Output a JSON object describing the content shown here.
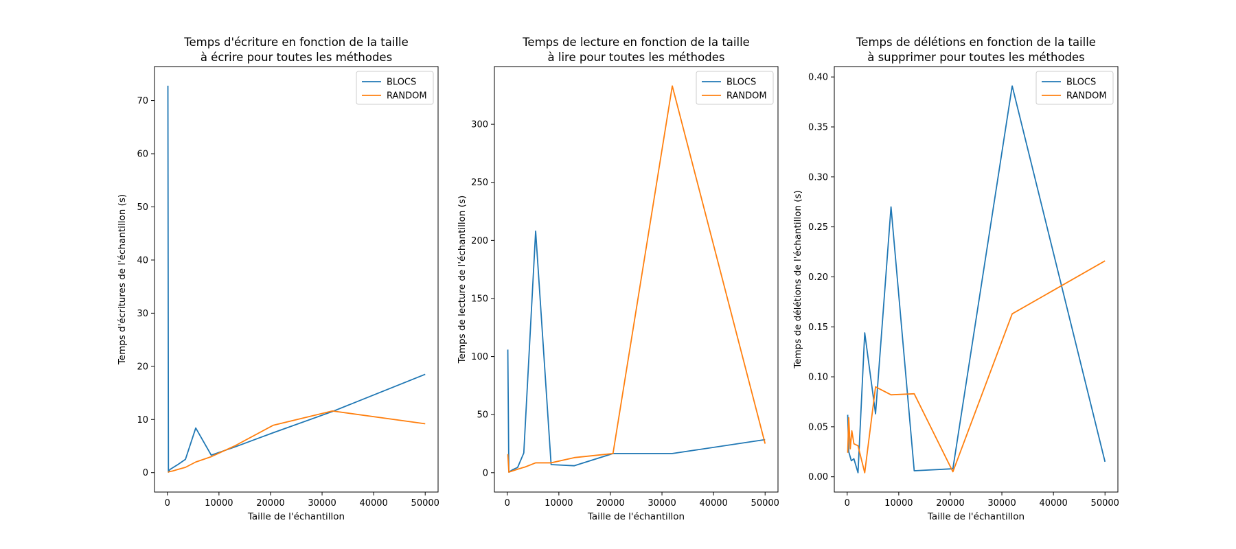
{
  "colors": {
    "BLOCS": "#1f77b4",
    "RANDOM": "#ff7f0e",
    "background": "#ffffff",
    "axes": "#000000"
  },
  "chart_data": [
    {
      "type": "line",
      "title": [
        "Temps d'écriture en fonction de la taille",
        "à écrire pour toutes les méthodes"
      ],
      "xlabel": "Taille de l'échantillon",
      "ylabel": "Temps d'écritures de l'échantillon (s)",
      "xlim": [
        -2500,
        52500
      ],
      "ylim": [
        -3.65,
        76.4
      ],
      "xticks": [
        0,
        10000,
        20000,
        30000,
        40000,
        50000
      ],
      "yticks": [
        0,
        10,
        20,
        30,
        40,
        50,
        60,
        70
      ],
      "legend": "top-right",
      "grid": false,
      "series": [
        {
          "name": "BLOCS",
          "points": [
            [
              100,
              72.8
            ],
            [
              200,
              0.1
            ],
            [
              500,
              0.6
            ],
            [
              1000,
              0.9
            ],
            [
              2000,
              1.5
            ],
            [
              3500,
              2.5
            ],
            [
              5500,
              8.4
            ],
            [
              8500,
              3.3
            ],
            [
              13000,
              4.8
            ],
            [
              20500,
              7.5
            ],
            [
              32000,
              11.5
            ],
            [
              50000,
              18.5
            ]
          ]
        },
        {
          "name": "RANDOM",
          "points": [
            [
              100,
              0.1
            ],
            [
              500,
              0.2
            ],
            [
              1000,
              0.3
            ],
            [
              2000,
              0.6
            ],
            [
              3500,
              1.0
            ],
            [
              5500,
              2.0
            ],
            [
              8500,
              3.0
            ],
            [
              13000,
              5.0
            ],
            [
              20500,
              8.9
            ],
            [
              32000,
              11.6
            ],
            [
              50000,
              9.2
            ]
          ]
        }
      ]
    },
    {
      "type": "line",
      "title": [
        "Temps de lecture en fonction de la taille",
        "à lire pour toutes les méthodes"
      ],
      "xlabel": "Taille de l'échantillon",
      "ylabel": "Temps de lecture de l'échantillon (s)",
      "xlim": [
        -2500,
        52500
      ],
      "ylim": [
        -16.65,
        349.7
      ],
      "xticks": [
        0,
        10000,
        20000,
        30000,
        40000,
        50000
      ],
      "yticks": [
        0,
        50,
        100,
        150,
        200,
        250,
        300
      ],
      "legend": "top-right",
      "grid": false,
      "series": [
        {
          "name": "BLOCS",
          "points": [
            [
              100,
              106
            ],
            [
              300,
              0.5
            ],
            [
              1000,
              2.5
            ],
            [
              2000,
              4.5
            ],
            [
              3200,
              17
            ],
            [
              5500,
              208
            ],
            [
              8500,
              7
            ],
            [
              13000,
              6
            ],
            [
              20500,
              16.5
            ],
            [
              32000,
              16.5
            ],
            [
              50000,
              28.5
            ]
          ]
        },
        {
          "name": "RANDOM",
          "points": [
            [
              100,
              16
            ],
            [
              300,
              0.5
            ],
            [
              1000,
              1.5
            ],
            [
              2000,
              3
            ],
            [
              3500,
              5
            ],
            [
              5500,
              8.5
            ],
            [
              8500,
              8.5
            ],
            [
              13000,
              13
            ],
            [
              20500,
              16.5
            ],
            [
              32000,
              333
            ],
            [
              50000,
              25
            ]
          ]
        }
      ]
    },
    {
      "type": "line",
      "title": [
        "Temps de délétions en fonction de la taille",
        "à supprimer pour toutes les méthodes"
      ],
      "xlabel": "Taille de l'échantillon",
      "ylabel": "Temps de délétions de l'échantillon (s)",
      "xlim": [
        -2500,
        52500
      ],
      "ylim": [
        -0.0153,
        0.4104
      ],
      "xticks": [
        0,
        10000,
        20000,
        30000,
        40000,
        50000
      ],
      "yticks": [
        0.0,
        0.05,
        0.1,
        0.15,
        0.2,
        0.25,
        0.3,
        0.35,
        0.4
      ],
      "yticklabels": [
        "0.00",
        "0.05",
        "0.10",
        "0.15",
        "0.20",
        "0.25",
        "0.30",
        "0.35",
        "0.40"
      ],
      "legend": "top-right",
      "grid": false,
      "series": [
        {
          "name": "BLOCS",
          "points": [
            [
              100,
              0.062
            ],
            [
              300,
              0.025
            ],
            [
              800,
              0.016
            ],
            [
              1300,
              0.018
            ],
            [
              2100,
              0.004
            ],
            [
              3400,
              0.144
            ],
            [
              5500,
              0.063
            ],
            [
              8500,
              0.27
            ],
            [
              13000,
              0.006
            ],
            [
              20500,
              0.008
            ],
            [
              32000,
              0.391
            ],
            [
              50000,
              0.015
            ]
          ]
        },
        {
          "name": "RANDOM",
          "points": [
            [
              100,
              0.024
            ],
            [
              300,
              0.059
            ],
            [
              600,
              0.028
            ],
            [
              900,
              0.046
            ],
            [
              1300,
              0.033
            ],
            [
              2100,
              0.031
            ],
            [
              3400,
              0.004
            ],
            [
              5500,
              0.09
            ],
            [
              8500,
              0.082
            ],
            [
              13000,
              0.083
            ],
            [
              20500,
              0.005
            ],
            [
              32000,
              0.163
            ],
            [
              50000,
              0.216
            ]
          ]
        }
      ]
    }
  ]
}
